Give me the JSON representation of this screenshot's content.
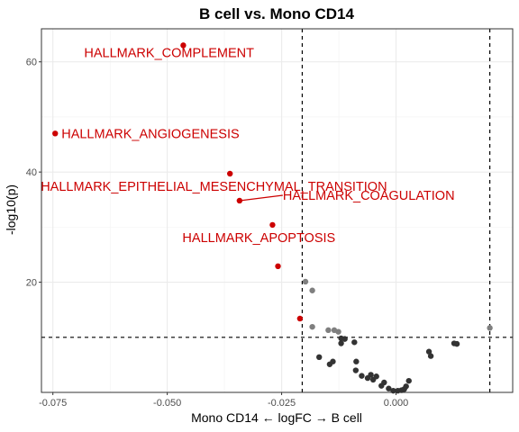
{
  "chart_data": {
    "type": "scatter",
    "title": "B cell vs. Mono CD14",
    "xlabel": "Mono CD14 ← logFC → B cell",
    "ylabel": "-log10(p)",
    "xlim": [
      -0.0775,
      0.0255
    ],
    "ylim": [
      0,
      66
    ],
    "x_ticks": [
      {
        "value": -0.075,
        "label": "-0.075"
      },
      {
        "value": -0.05,
        "label": "-0.050"
      },
      {
        "value": -0.025,
        "label": "-0.025"
      },
      {
        "value": 0.0,
        "label": "0.000"
      }
    ],
    "y_ticks": [
      {
        "value": 20,
        "label": "20"
      },
      {
        "value": 40,
        "label": "40"
      },
      {
        "value": 60,
        "label": "60"
      }
    ],
    "grid": true,
    "thresholds": {
      "vertical": [
        -0.0205,
        0.0205
      ],
      "horizontal": [
        10
      ]
    },
    "colors": {
      "significant_labeled": "#cc0000",
      "significant": "#7f7f7f",
      "not_significant": "#333333",
      "label_text": "#cc0000"
    },
    "points": [
      {
        "x": -0.0465,
        "y": 63.0,
        "group": "significant_labeled",
        "label": "HALLMARK_COMPLEMENT"
      },
      {
        "x": -0.0745,
        "y": 47.0,
        "group": "significant_labeled",
        "label": "HALLMARK_ANGIOGENESIS"
      },
      {
        "x": -0.0363,
        "y": 39.7,
        "group": "significant_labeled",
        "label": "HALLMARK_EPITHELIAL_MESENCHYMAL_TRANSITION"
      },
      {
        "x": -0.0342,
        "y": 34.8,
        "group": "significant_labeled",
        "label": "HALLMARK_COAGULATION"
      },
      {
        "x": -0.027,
        "y": 30.4,
        "group": "significant_labeled",
        "label": "HALLMARK_APOPTOSIS"
      },
      {
        "x": -0.0258,
        "y": 22.9,
        "group": "significant_labeled"
      },
      {
        "x": -0.021,
        "y": 13.4,
        "group": "significant_labeled"
      },
      {
        "x": -0.0198,
        "y": 20.1,
        "group": "significant"
      },
      {
        "x": -0.0183,
        "y": 18.5,
        "group": "significant"
      },
      {
        "x": -0.0183,
        "y": 11.9,
        "group": "significant"
      },
      {
        "x": -0.0148,
        "y": 11.3,
        "group": "significant"
      },
      {
        "x": -0.0135,
        "y": 11.3,
        "group": "significant"
      },
      {
        "x": -0.0126,
        "y": 11.0,
        "group": "significant"
      },
      {
        "x": 0.0205,
        "y": 11.7,
        "group": "significant"
      },
      {
        "x": -0.012,
        "y": 9.8,
        "group": "not_significant"
      },
      {
        "x": -0.012,
        "y": 8.9,
        "group": "not_significant"
      },
      {
        "x": -0.0112,
        "y": 9.7,
        "group": "not_significant"
      },
      {
        "x": -0.0091,
        "y": 9.1,
        "group": "not_significant"
      },
      {
        "x": -0.0168,
        "y": 6.4,
        "group": "not_significant"
      },
      {
        "x": -0.0145,
        "y": 5.1,
        "group": "not_significant"
      },
      {
        "x": -0.0138,
        "y": 5.6,
        "group": "not_significant"
      },
      {
        "x": -0.0087,
        "y": 5.6,
        "group": "not_significant"
      },
      {
        "x": -0.0088,
        "y": 4.0,
        "group": "not_significant"
      },
      {
        "x": -0.0075,
        "y": 3.0,
        "group": "not_significant"
      },
      {
        "x": -0.0062,
        "y": 2.6,
        "group": "not_significant"
      },
      {
        "x": -0.0055,
        "y": 3.2,
        "group": "not_significant"
      },
      {
        "x": -0.005,
        "y": 2.3,
        "group": "not_significant"
      },
      {
        "x": -0.0043,
        "y": 2.9,
        "group": "not_significant"
      },
      {
        "x": -0.0032,
        "y": 1.2,
        "group": "not_significant"
      },
      {
        "x": -0.0026,
        "y": 1.8,
        "group": "not_significant"
      },
      {
        "x": -0.0016,
        "y": 0.7,
        "group": "not_significant"
      },
      {
        "x": -0.0006,
        "y": 0.3,
        "group": "not_significant"
      },
      {
        "x": 0.0004,
        "y": 0.3,
        "group": "not_significant"
      },
      {
        "x": 0.0012,
        "y": 0.4,
        "group": "not_significant"
      },
      {
        "x": 0.0018,
        "y": 0.6,
        "group": "not_significant"
      },
      {
        "x": 0.0022,
        "y": 1.1,
        "group": "not_significant"
      },
      {
        "x": 0.0028,
        "y": 2.1,
        "group": "not_significant"
      },
      {
        "x": 0.0072,
        "y": 7.4,
        "group": "not_significant"
      },
      {
        "x": 0.0076,
        "y": 6.6,
        "group": "not_significant"
      },
      {
        "x": 0.0127,
        "y": 8.9,
        "group": "not_significant"
      },
      {
        "x": 0.0133,
        "y": 8.8,
        "group": "not_significant"
      }
    ]
  }
}
